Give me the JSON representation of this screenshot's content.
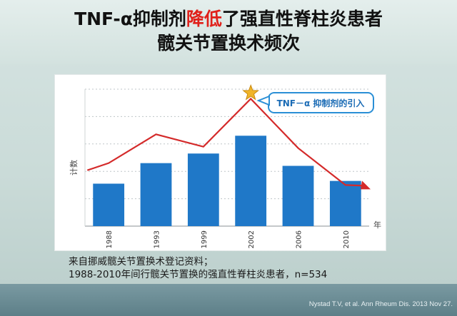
{
  "title": {
    "line1_pre": "TNF-α抑制剂",
    "line1_highlight": "降低",
    "line1_post": "了强直性脊柱炎患者",
    "line2": "髋关节置换术频次"
  },
  "source": {
    "line1": "来自挪威髋关节置换术登记资料；",
    "line2": "1988-2010年间行髋关节置换的强直性脊柱炎患者，n=534"
  },
  "citation": "Nystad T.V, et al. Ann Rheum Dis. 2013 Nov 27.",
  "chart_data": {
    "type": "bar",
    "categories": [
      "1988",
      "1993",
      "1999",
      "2002",
      "2006",
      "2010"
    ],
    "values": [
      3.1,
      4.6,
      5.3,
      6.6,
      4.4,
      3.3
    ],
    "line_values": [
      4.6,
      6.7,
      5.8,
      9.3,
      5.7,
      3.0
    ],
    "ylabel": "计数",
    "xlabel": "年",
    "callout": "TNF－α 抑制剂的引入",
    "ylim": [
      0,
      10
    ],
    "colors": {
      "bar": "#1f78c8",
      "line": "#d42a2a",
      "callout_border": "#2a8fd6",
      "callout_text": "#1a6bb5",
      "star": "#f0b429"
    },
    "grid": "horizontal, dotted"
  }
}
